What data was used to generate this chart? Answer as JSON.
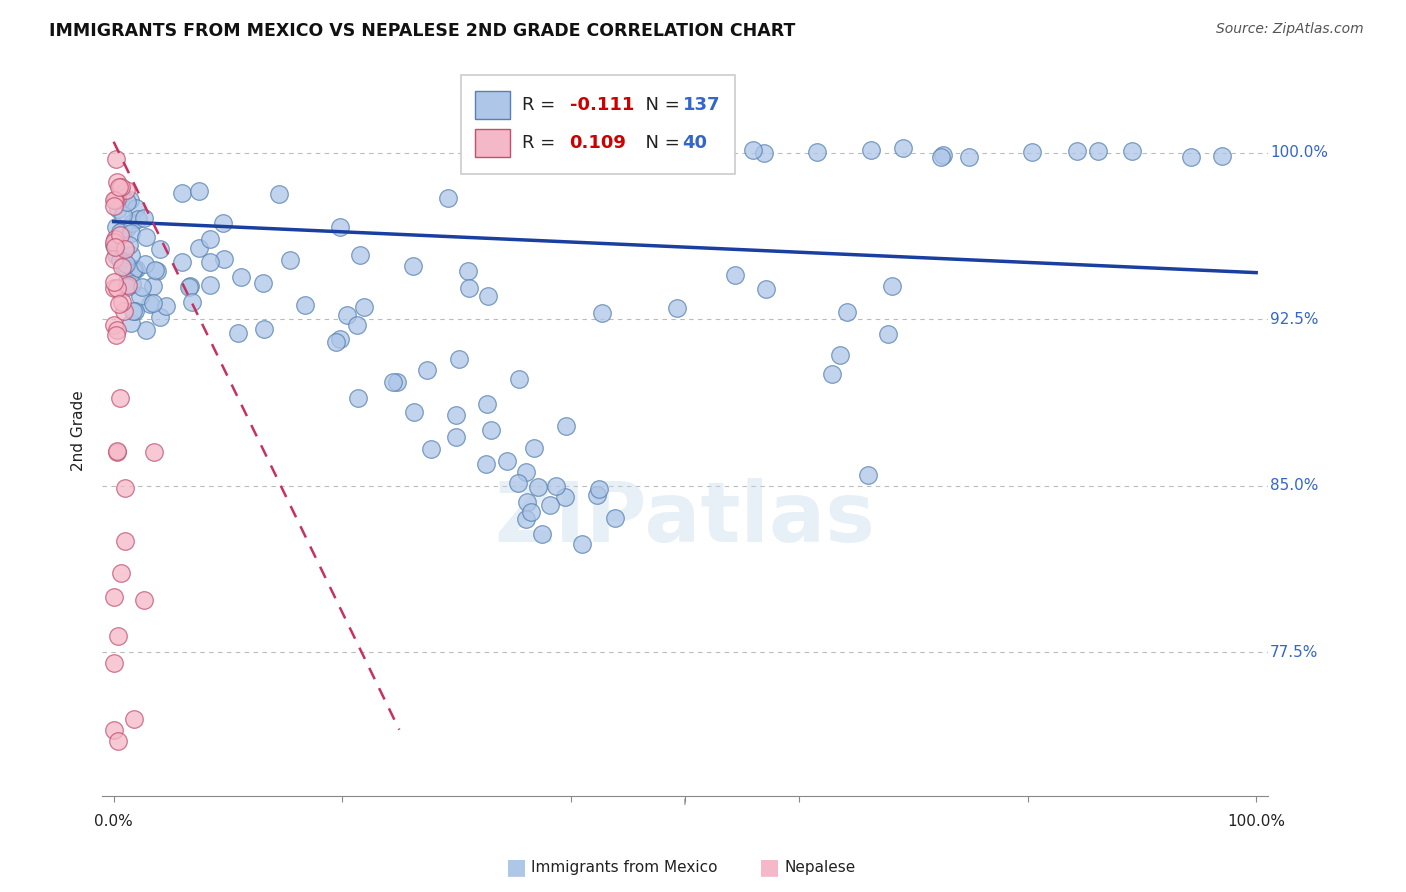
{
  "title": "IMMIGRANTS FROM MEXICO VS NEPALESE 2ND GRADE CORRELATION CHART",
  "source": "Source: ZipAtlas.com",
  "ylabel": "2nd Grade",
  "watermark": "ZIPatlas",
  "blue_R": -0.111,
  "blue_N": 137,
  "pink_R": 0.109,
  "pink_N": 40,
  "blue_color": "#aec6e8",
  "blue_edge": "#5580b0",
  "pink_color": "#f5b8c8",
  "pink_edge": "#c05070",
  "blue_line_color": "#1a3fa0",
  "pink_line_color": "#c83060",
  "grid_color": "#bbbbbb",
  "axis_label_color": "#3366cc",
  "right_label_color": "#3366cc",
  "y_ticks": [
    0.775,
    0.85,
    0.925,
    1.0
  ],
  "y_tick_labels": [
    "77.5%",
    "85.0%",
    "92.5%",
    "100.0%"
  ],
  "xlim": [
    -0.01,
    1.01
  ],
  "ylim": [
    0.71,
    1.04
  ],
  "blue_line_x0": 0.0,
  "blue_line_y0": 0.969,
  "blue_line_x1": 1.0,
  "blue_line_y1": 0.946,
  "pink_line_x0": 0.0,
  "pink_line_y0": 1.005,
  "pink_line_x1": 0.25,
  "pink_line_y1": 0.74
}
